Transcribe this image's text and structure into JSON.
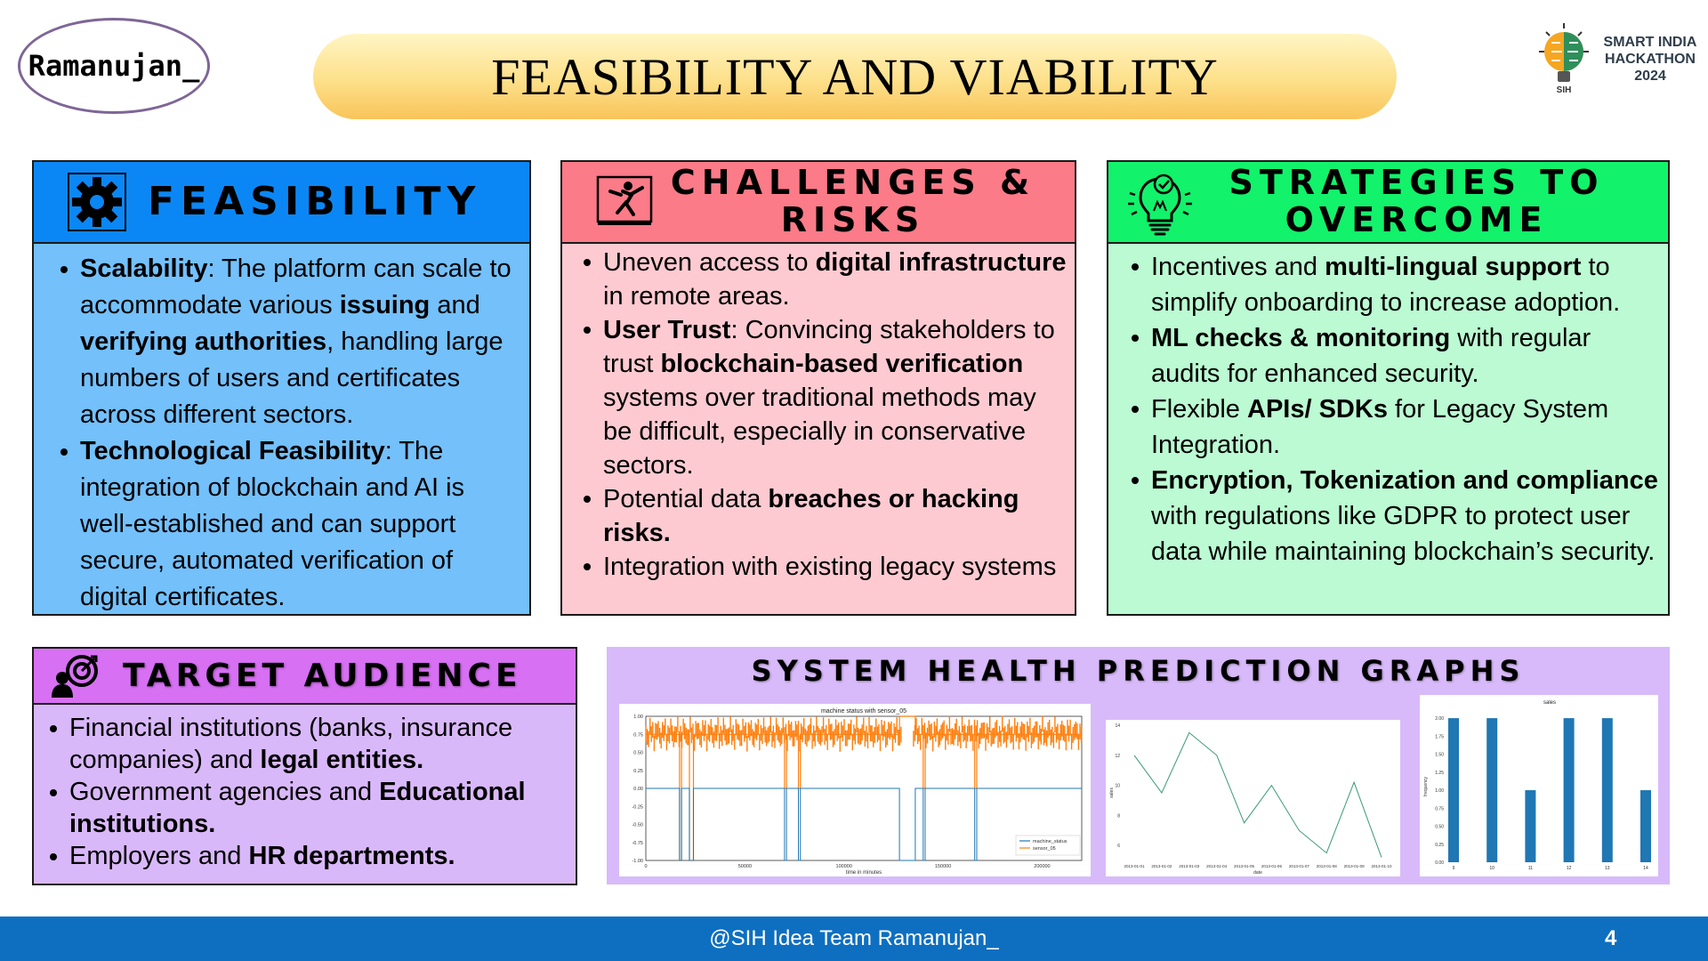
{
  "header": {
    "team_logo": "Ramanujan_",
    "title": "FEASIBILITY AND VIABILITY",
    "sih_logo": {
      "line1": "SMART INDIA",
      "line2": "HACKATHON",
      "line3": "2024",
      "brain_label": "SIH"
    }
  },
  "feasibility": {
    "icon": "gear-icon",
    "heading": "FEASIBILITY",
    "items": [
      {
        "segments": [
          [
            "Scalability",
            true
          ],
          [
            ": The platform can scale to accommodate various ",
            false
          ],
          [
            "issuing",
            true
          ],
          [
            " and ",
            false
          ],
          [
            "verifying authorities",
            true
          ],
          [
            ", handling large numbers of users and certificates across different sectors.",
            false
          ]
        ]
      },
      {
        "segments": [
          [
            "Technological Feasibility",
            true
          ],
          [
            ": The integration of blockchain and AI is well-established and can support secure, automated verification of digital certificates.",
            false
          ]
        ]
      }
    ]
  },
  "challenges": {
    "icon": "hazard-icon",
    "heading_line1": "CHALLENGES &",
    "heading_line2": "RISKS",
    "items": [
      {
        "segments": [
          [
            "Uneven access to ",
            false
          ],
          [
            "digital infrastructure",
            true
          ],
          [
            " in remote areas.",
            false
          ]
        ]
      },
      {
        "segments": [
          [
            "User Trust",
            true
          ],
          [
            ": Convincing stakeholders to trust ",
            false
          ],
          [
            "blockchain-based verification",
            true
          ],
          [
            " systems over traditional methods may be difficult, especially in conservative sectors.",
            false
          ]
        ]
      },
      {
        "segments": [
          [
            "Potential data ",
            false
          ],
          [
            "breaches or hacking risks.",
            true
          ]
        ]
      },
      {
        "segments": [
          [
            "Integration with existing legacy systems",
            false
          ]
        ]
      }
    ]
  },
  "strategies": {
    "icon": "lightbulb-icon",
    "heading_line1": "STRATEGIES TO",
    "heading_line2": "OVERCOME",
    "items": [
      {
        "segments": [
          [
            "Incentives and ",
            false
          ],
          [
            "multi-lingual support",
            true
          ],
          [
            " to simplify onboarding to increase adoption.",
            false
          ]
        ]
      },
      {
        "segments": [
          [
            "ML checks & monitoring",
            true
          ],
          [
            " with regular audits for enhanced security.",
            false
          ]
        ]
      },
      {
        "segments": [
          [
            "Flexible ",
            false
          ],
          [
            "APIs/ SDKs",
            true
          ],
          [
            " for Legacy System Integration.",
            false
          ]
        ]
      },
      {
        "segments": [
          [
            "Encryption, Tokenization and compliance",
            true
          ],
          [
            " with regulations like GDPR to protect user data while maintaining blockchain’s security.",
            false
          ]
        ]
      }
    ]
  },
  "target": {
    "icon": "target-audience-icon",
    "heading": "TARGET AUDIENCE",
    "items": [
      {
        "segments": [
          [
            "Financial institutions (banks, insurance companies) and ",
            false
          ],
          [
            "legal entities.",
            true
          ]
        ]
      },
      {
        "segments": [
          [
            "Government agencies and ",
            false
          ],
          [
            "Educational institutions.",
            true
          ]
        ]
      },
      {
        "segments": [
          [
            "Employers and ",
            false
          ],
          [
            "HR departments.",
            true
          ]
        ]
      }
    ]
  },
  "graphs": {
    "heading": "SYSTEM HEALTH PREDICTION GRAPHS",
    "chart_data": [
      {
        "type": "line",
        "title": "machine status with sensor_05",
        "xlabel": "time in minutes",
        "ylabel": "",
        "xlim": [
          0,
          220000
        ],
        "ylim": [
          -1.0,
          1.0
        ],
        "x_ticks": [
          "0",
          "50000",
          "100000",
          "150000",
          "200000"
        ],
        "y_ticks": [
          "1.00",
          "0.75",
          "0.50",
          "0.25",
          "0.00",
          "-0.25",
          "-0.50",
          "-0.75",
          "-1.00"
        ],
        "legend": "bottom-right",
        "series": [
          {
            "name": "machine_status",
            "color": "#1f77b4",
            "x": [
              0,
              17000,
              17000,
              18000,
              18000,
              22000,
              22000,
              24000,
              24000,
              70000,
              70000,
              71000,
              71000,
              77000,
              77000,
              78000,
              78000,
              128000,
              128000,
              136000,
              136000,
              140000,
              140000,
              141000,
              141000,
              166000,
              166000,
              167000,
              167000,
              220000
            ],
            "y": [
              0,
              0,
              -1,
              -1,
              0,
              0,
              -1,
              -1,
              0,
              0,
              -1,
              -1,
              0,
              0,
              -1,
              -1,
              0,
              0,
              -1,
              -1,
              0,
              0,
              -1,
              -1,
              0,
              0,
              -1,
              -1,
              0,
              0
            ]
          },
          {
            "name": "sensor_05",
            "color": "#ff7f0e",
            "x": [
              0,
              17000,
              17000,
              18000,
              18000,
              22000,
              22000,
              24000,
              24000,
              70000,
              70000,
              71000,
              71000,
              77000,
              77000,
              78000,
              78000,
              128000,
              128000,
              129000,
              135000,
              136000,
              136000,
              140000,
              140000,
              141000,
              141000,
              166000,
              166000,
              167000,
              167000,
              220000
            ],
            "y": [
              0.75,
              0.75,
              -1,
              -1,
              0.75,
              0.75,
              -1,
              -1,
              0.75,
              0.75,
              0.0,
              0.0,
              0.75,
              0.75,
              0.0,
              0.0,
              0.75,
              0.75,
              1.0,
              1.0,
              1.0,
              1.0,
              0.75,
              0.75,
              0.0,
              0.0,
              0.75,
              0.75,
              0.0,
              0.0,
              0.75,
              0.75
            ]
          }
        ]
      },
      {
        "type": "line",
        "title": "",
        "xlabel": "date",
        "ylabel": "sales",
        "categories": [
          "2013-01-01",
          "2013-01-02",
          "2013-01-03",
          "2013-01-04",
          "2013-01-05",
          "2013-01-06",
          "2013-01-07",
          "2013-01-08",
          "2013-01-09",
          "2013-01-10"
        ],
        "series": [
          {
            "name": "",
            "color": "#3a9a74",
            "values": [
              12.0,
              9.5,
              13.5,
              12.0,
              7.5,
              10.0,
              7.0,
              5.5,
              10.2,
              5.2
            ]
          }
        ],
        "ylim": [
          5,
          14
        ],
        "y_ticks": [
          "14",
          "12",
          "10",
          "8",
          "6"
        ]
      },
      {
        "type": "bar",
        "title": "sales",
        "xlabel": "",
        "ylabel": "frequency",
        "categories": [
          "9",
          "10",
          "11",
          "12",
          "13",
          "14"
        ],
        "values": [
          2.0,
          2.0,
          1.0,
          2.0,
          2.0,
          1.0
        ],
        "color": "#1f77b4",
        "ylim": [
          0,
          2.1
        ],
        "y_ticks": [
          "2.00",
          "1.75",
          "1.50",
          "1.25",
          "1.00",
          "0.75",
          "0.50",
          "0.25",
          "0.00"
        ]
      }
    ]
  },
  "footer": {
    "text": "@SIH Idea Team Ramanujan_",
    "page_number": "4"
  }
}
